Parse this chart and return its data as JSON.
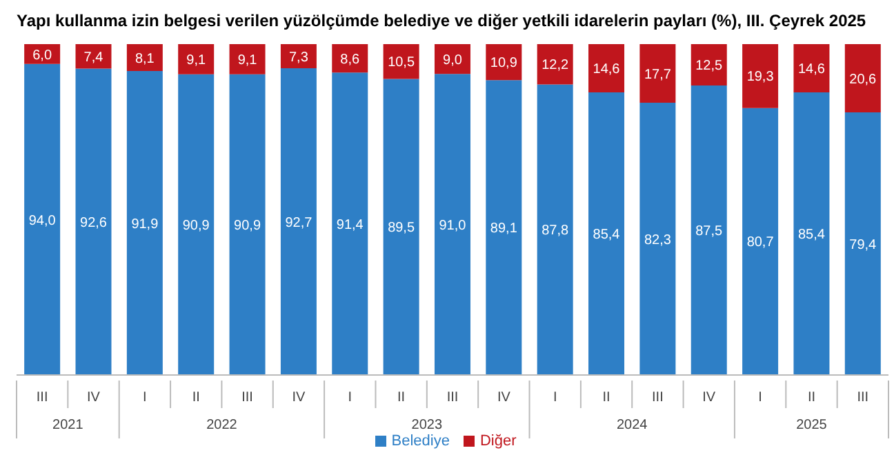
{
  "chart_data": {
    "type": "bar",
    "title": "Yapı kullanma izin belgesi verilen yüzölçümde belediye ve diğer yetkili idarelerin payları (%), III. Çeyrek 2025",
    "categories": [
      "III",
      "IV",
      "I",
      "II",
      "III",
      "IV",
      "I",
      "II",
      "III",
      "IV",
      "I",
      "II",
      "III",
      "IV",
      "I",
      "II",
      "III"
    ],
    "annotations": [
      "2021",
      "2022",
      "2023",
      "2024",
      "2025"
    ],
    "stacked": true,
    "tick_labels": "x",
    "legend": "bottom",
    "series": [
      {
        "name": "Belediye",
        "color": "#2e7fc6",
        "values": [
          94.0,
          92.6,
          91.9,
          90.9,
          90.9,
          92.7,
          91.4,
          89.5,
          91.0,
          89.1,
          87.8,
          85.4,
          82.3,
          87.5,
          80.7,
          85.4,
          79.4
        ],
        "value_labels": [
          "94,0",
          "92,6",
          "91,9",
          "90,9",
          "90,9",
          "92,7",
          "91,4",
          "89,5",
          "91,0",
          "89,1",
          "87,8",
          "85,4",
          "82,3",
          "87,5",
          "80,7",
          "85,4",
          "79,4"
        ]
      },
      {
        "name": "Diğer",
        "color": "#c0161d",
        "values": [
          6.0,
          7.4,
          8.1,
          9.1,
          9.1,
          7.3,
          8.6,
          10.5,
          9.0,
          10.9,
          12.2,
          14.6,
          17.7,
          12.5,
          19.3,
          14.6,
          20.6
        ],
        "value_labels": [
          "6,0",
          "7,4",
          "8,1",
          "9,1",
          "9,1",
          "7,3",
          "8,6",
          "10,5",
          "9,0",
          "10,9",
          "12,2",
          "14,6",
          "17,7",
          "12,5",
          "19,3",
          "14,6",
          "20,6"
        ]
      }
    ]
  }
}
